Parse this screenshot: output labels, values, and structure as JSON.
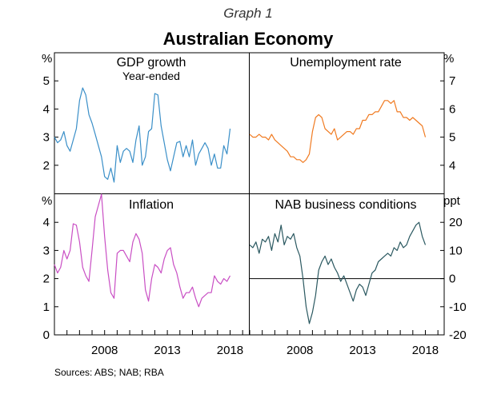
{
  "graph_label": "Graph 1",
  "title": "Australian Economy",
  "sources": "Sources:   ABS; NAB; RBA",
  "colors": {
    "gdp": "#3a8fc8",
    "unemployment": "#f07a20",
    "inflation": "#c94fc4",
    "nab": "#2a5860"
  },
  "x_axis": {
    "range": [
      2004.0,
      2019.5
    ],
    "tick_labels": [
      "2008",
      "2013",
      "2018"
    ],
    "tick_label_years": [
      2008,
      2013,
      2018
    ]
  },
  "chart_data": [
    {
      "type": "line",
      "title": "GDP growth",
      "subtitle": "Year-ended",
      "unit": "%",
      "axis_side": "left",
      "ylim": [
        1,
        6
      ],
      "yticks": [
        2,
        3,
        4,
        5
      ],
      "series": [
        {
          "color": "#3a8fc8",
          "x": [
            2004.0,
            2004.25,
            2004.5,
            2004.75,
            2005.0,
            2005.25,
            2005.5,
            2005.75,
            2006.0,
            2006.25,
            2006.5,
            2006.75,
            2007.0,
            2007.25,
            2007.5,
            2007.75,
            2008.0,
            2008.25,
            2008.5,
            2008.75,
            2009.0,
            2009.25,
            2009.5,
            2009.75,
            2010.0,
            2010.25,
            2010.5,
            2010.75,
            2011.0,
            2011.25,
            2011.5,
            2011.75,
            2012.0,
            2012.25,
            2012.5,
            2012.75,
            2013.0,
            2013.25,
            2013.5,
            2013.75,
            2014.0,
            2014.25,
            2014.5,
            2014.75,
            2015.0,
            2015.25,
            2015.5,
            2015.75,
            2016.0,
            2016.25,
            2016.5,
            2016.75,
            2017.0,
            2017.25,
            2017.5,
            2017.75,
            2018.0
          ],
          "y": [
            3.0,
            2.8,
            2.9,
            3.2,
            2.7,
            2.5,
            2.9,
            3.3,
            4.3,
            4.75,
            4.5,
            3.8,
            3.5,
            3.1,
            2.7,
            2.3,
            1.6,
            1.5,
            1.9,
            1.4,
            2.7,
            2.1,
            2.5,
            2.6,
            2.5,
            2.1,
            2.9,
            3.4,
            2.0,
            2.3,
            3.2,
            3.3,
            4.55,
            4.5,
            3.4,
            2.8,
            2.2,
            1.8,
            2.3,
            2.8,
            2.85,
            2.3,
            2.7,
            2.3,
            2.9,
            2.0,
            2.4,
            2.6,
            2.8,
            2.6,
            2.0,
            2.4,
            1.9,
            1.9,
            2.7,
            2.4,
            3.3
          ]
        }
      ]
    },
    {
      "type": "line",
      "title": "Unemployment rate",
      "unit": "%",
      "axis_side": "right",
      "ylim": [
        3,
        8
      ],
      "yticks": [
        4,
        5,
        6,
        7
      ],
      "series": [
        {
          "color": "#f07a20",
          "x": [
            2004.0,
            2004.25,
            2004.5,
            2004.75,
            2005.0,
            2005.25,
            2005.5,
            2005.75,
            2006.0,
            2006.25,
            2006.5,
            2006.75,
            2007.0,
            2007.25,
            2007.5,
            2007.75,
            2008.0,
            2008.25,
            2008.5,
            2008.75,
            2009.0,
            2009.25,
            2009.5,
            2009.75,
            2010.0,
            2010.25,
            2010.5,
            2010.75,
            2011.0,
            2011.25,
            2011.5,
            2011.75,
            2012.0,
            2012.25,
            2012.5,
            2012.75,
            2013.0,
            2013.25,
            2013.5,
            2013.75,
            2014.0,
            2014.25,
            2014.5,
            2014.75,
            2015.0,
            2015.25,
            2015.5,
            2015.75,
            2016.0,
            2016.25,
            2016.5,
            2016.75,
            2017.0,
            2017.25,
            2017.5,
            2017.75,
            2018.0
          ],
          "y": [
            5.1,
            5.0,
            5.0,
            5.1,
            5.0,
            5.0,
            4.9,
            5.1,
            4.9,
            4.8,
            4.7,
            4.6,
            4.5,
            4.3,
            4.3,
            4.2,
            4.2,
            4.1,
            4.2,
            4.4,
            5.2,
            5.7,
            5.8,
            5.7,
            5.3,
            5.2,
            5.1,
            5.3,
            4.9,
            5.0,
            5.1,
            5.2,
            5.2,
            5.1,
            5.3,
            5.3,
            5.6,
            5.6,
            5.8,
            5.8,
            5.9,
            5.9,
            6.1,
            6.3,
            6.3,
            6.2,
            6.3,
            5.9,
            5.9,
            5.7,
            5.7,
            5.6,
            5.7,
            5.6,
            5.5,
            5.4,
            5.0
          ]
        }
      ]
    },
    {
      "type": "line",
      "title": "Inflation",
      "unit": "%",
      "axis_side": "left",
      "ylim": [
        0,
        5
      ],
      "yticks": [
        0,
        1,
        2,
        3,
        4
      ],
      "series": [
        {
          "color": "#c94fc4",
          "x": [
            2004.0,
            2004.25,
            2004.5,
            2004.75,
            2005.0,
            2005.25,
            2005.5,
            2005.75,
            2006.0,
            2006.25,
            2006.5,
            2006.75,
            2007.0,
            2007.25,
            2007.5,
            2007.75,
            2008.0,
            2008.25,
            2008.5,
            2008.75,
            2009.0,
            2009.25,
            2009.5,
            2009.75,
            2010.0,
            2010.25,
            2010.5,
            2010.75,
            2011.0,
            2011.25,
            2011.5,
            2011.75,
            2012.0,
            2012.25,
            2012.5,
            2012.75,
            2013.0,
            2013.25,
            2013.5,
            2013.75,
            2014.0,
            2014.25,
            2014.5,
            2014.75,
            2015.0,
            2015.25,
            2015.5,
            2015.75,
            2016.0,
            2016.25,
            2016.5,
            2016.75,
            2017.0,
            2017.25,
            2017.5,
            2017.75,
            2018.0
          ],
          "y": [
            2.5,
            2.2,
            2.4,
            3.0,
            2.7,
            3.0,
            3.95,
            3.9,
            3.3,
            2.4,
            2.1,
            1.9,
            3.0,
            4.2,
            4.6,
            5.0,
            3.5,
            2.3,
            1.5,
            1.3,
            2.9,
            3.0,
            3.0,
            2.8,
            2.6,
            3.3,
            3.6,
            3.4,
            2.9,
            1.6,
            1.2,
            2.0,
            2.5,
            2.4,
            2.2,
            2.7,
            3.0,
            3.1,
            2.5,
            2.2,
            1.7,
            1.3,
            1.5,
            1.5,
            1.7,
            1.3,
            1.0,
            1.3,
            1.4,
            1.5,
            1.5,
            2.1,
            1.9,
            1.8,
            2.0,
            1.9,
            2.1
          ]
        }
      ]
    },
    {
      "type": "line",
      "title": "NAB business conditions",
      "unit": "ppt",
      "axis_side": "right",
      "ylim": [
        -20,
        30
      ],
      "yticks": [
        -20,
        -10,
        0,
        10,
        20
      ],
      "zero_line": true,
      "series": [
        {
          "color": "#2a5860",
          "x": [
            2004.0,
            2004.25,
            2004.5,
            2004.75,
            2005.0,
            2005.25,
            2005.5,
            2005.75,
            2006.0,
            2006.25,
            2006.5,
            2006.75,
            2007.0,
            2007.25,
            2007.5,
            2007.75,
            2008.0,
            2008.25,
            2008.5,
            2008.75,
            2009.0,
            2009.25,
            2009.5,
            2009.75,
            2010.0,
            2010.25,
            2010.5,
            2010.75,
            2011.0,
            2011.25,
            2011.5,
            2011.75,
            2012.0,
            2012.25,
            2012.5,
            2012.75,
            2013.0,
            2013.25,
            2013.5,
            2013.75,
            2014.0,
            2014.25,
            2014.5,
            2014.75,
            2015.0,
            2015.25,
            2015.5,
            2015.75,
            2016.0,
            2016.25,
            2016.5,
            2016.75,
            2017.0,
            2017.25,
            2017.5,
            2017.75,
            2018.0
          ],
          "y": [
            12,
            11,
            13,
            9,
            14,
            13,
            15,
            10,
            16,
            13,
            19,
            12,
            15,
            14,
            16,
            11,
            8,
            0,
            -10,
            -16,
            -12,
            -6,
            3,
            6,
            8,
            5,
            7,
            4,
            2,
            -1,
            1,
            -2,
            -5,
            -8,
            -4,
            -2,
            -3,
            -6,
            -2,
            2,
            3,
            6,
            7,
            8,
            9,
            8,
            11,
            10,
            13,
            11,
            12,
            15,
            17,
            19,
            20,
            15,
            12
          ]
        }
      ]
    }
  ]
}
